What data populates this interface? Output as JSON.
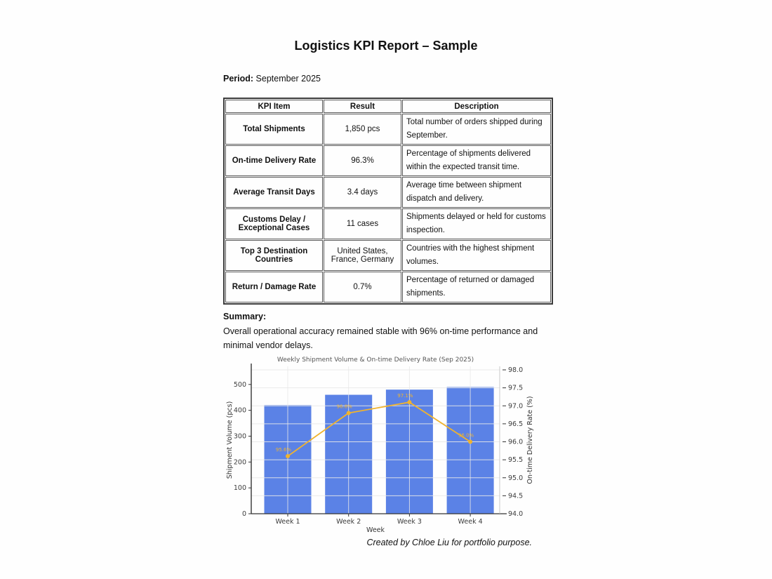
{
  "page": {
    "title": "Logistics KPI Report – Sample",
    "period_label": "Period:",
    "period_value": "September 2025",
    "summary_label": "Summary:",
    "summary_text": "Overall operational accuracy remained stable with 96% on-time performance and minimal vendor delays.",
    "footer": "Created by Chloe Liu for portfolio purpose."
  },
  "table": {
    "headers": [
      "KPI Item",
      "Result",
      "Description"
    ],
    "rows": [
      {
        "kpi": "Total Shipments",
        "result": "1,850 pcs",
        "description": "Total number of orders shipped during September."
      },
      {
        "kpi": "On-time Delivery Rate",
        "result": "96.3%",
        "description": "Percentage of shipments delivered within the expected transit time."
      },
      {
        "kpi": "Average Transit Days",
        "result": "3.4 days",
        "description": "Average time between shipment dispatch and delivery."
      },
      {
        "kpi": "Customs Delay / Exceptional Cases",
        "result": "11 cases",
        "description": "Shipments delayed or held for customs inspection."
      },
      {
        "kpi": "Top 3 Destination Countries",
        "result": "United States, France, Germany",
        "description": "Countries with the highest shipment volumes."
      },
      {
        "kpi": "Return / Damage Rate",
        "result": "0.7%",
        "description": "Percentage of returned or damaged shipments."
      }
    ]
  },
  "chart_data": {
    "type": "bar",
    "title": "Weekly Shipment Volume & On-time Delivery Rate (Sep 2025)",
    "categories": [
      "Week 1",
      "Week 2",
      "Week 3",
      "Week 4"
    ],
    "series": [
      {
        "name": "Shipment Volume (pcs)",
        "type": "bar",
        "axis": "left",
        "values": [
          420,
          460,
          480,
          490
        ]
      },
      {
        "name": "On-time Delivery Rate (%)",
        "type": "line",
        "axis": "right",
        "values": [
          95.6,
          96.8,
          97.1,
          96.0
        ],
        "point_labels": [
          "95.6%",
          "96.8%",
          "97.1%",
          "96.0%"
        ]
      }
    ],
    "xlabel": "Week",
    "ylabel_left": "Shipment Volume (pcs)",
    "ylabel_right": "On-time Delivery Rate (%)",
    "ylim_left": [
      0,
      570
    ],
    "ylim_right": [
      94.0,
      98.0
    ],
    "yticks_left": [
      0,
      100,
      200,
      300,
      400,
      500
    ],
    "yticks_right": [
      94.0,
      94.5,
      95.0,
      95.5,
      96.0,
      96.5,
      97.0,
      97.5,
      98.0
    ],
    "grid": true,
    "colors": {
      "bar": "#5b82e6",
      "line": "#f0b32e",
      "grid": "#e8e8e8",
      "tick_text": "#3c3c3c",
      "title_text": "#555555"
    }
  }
}
